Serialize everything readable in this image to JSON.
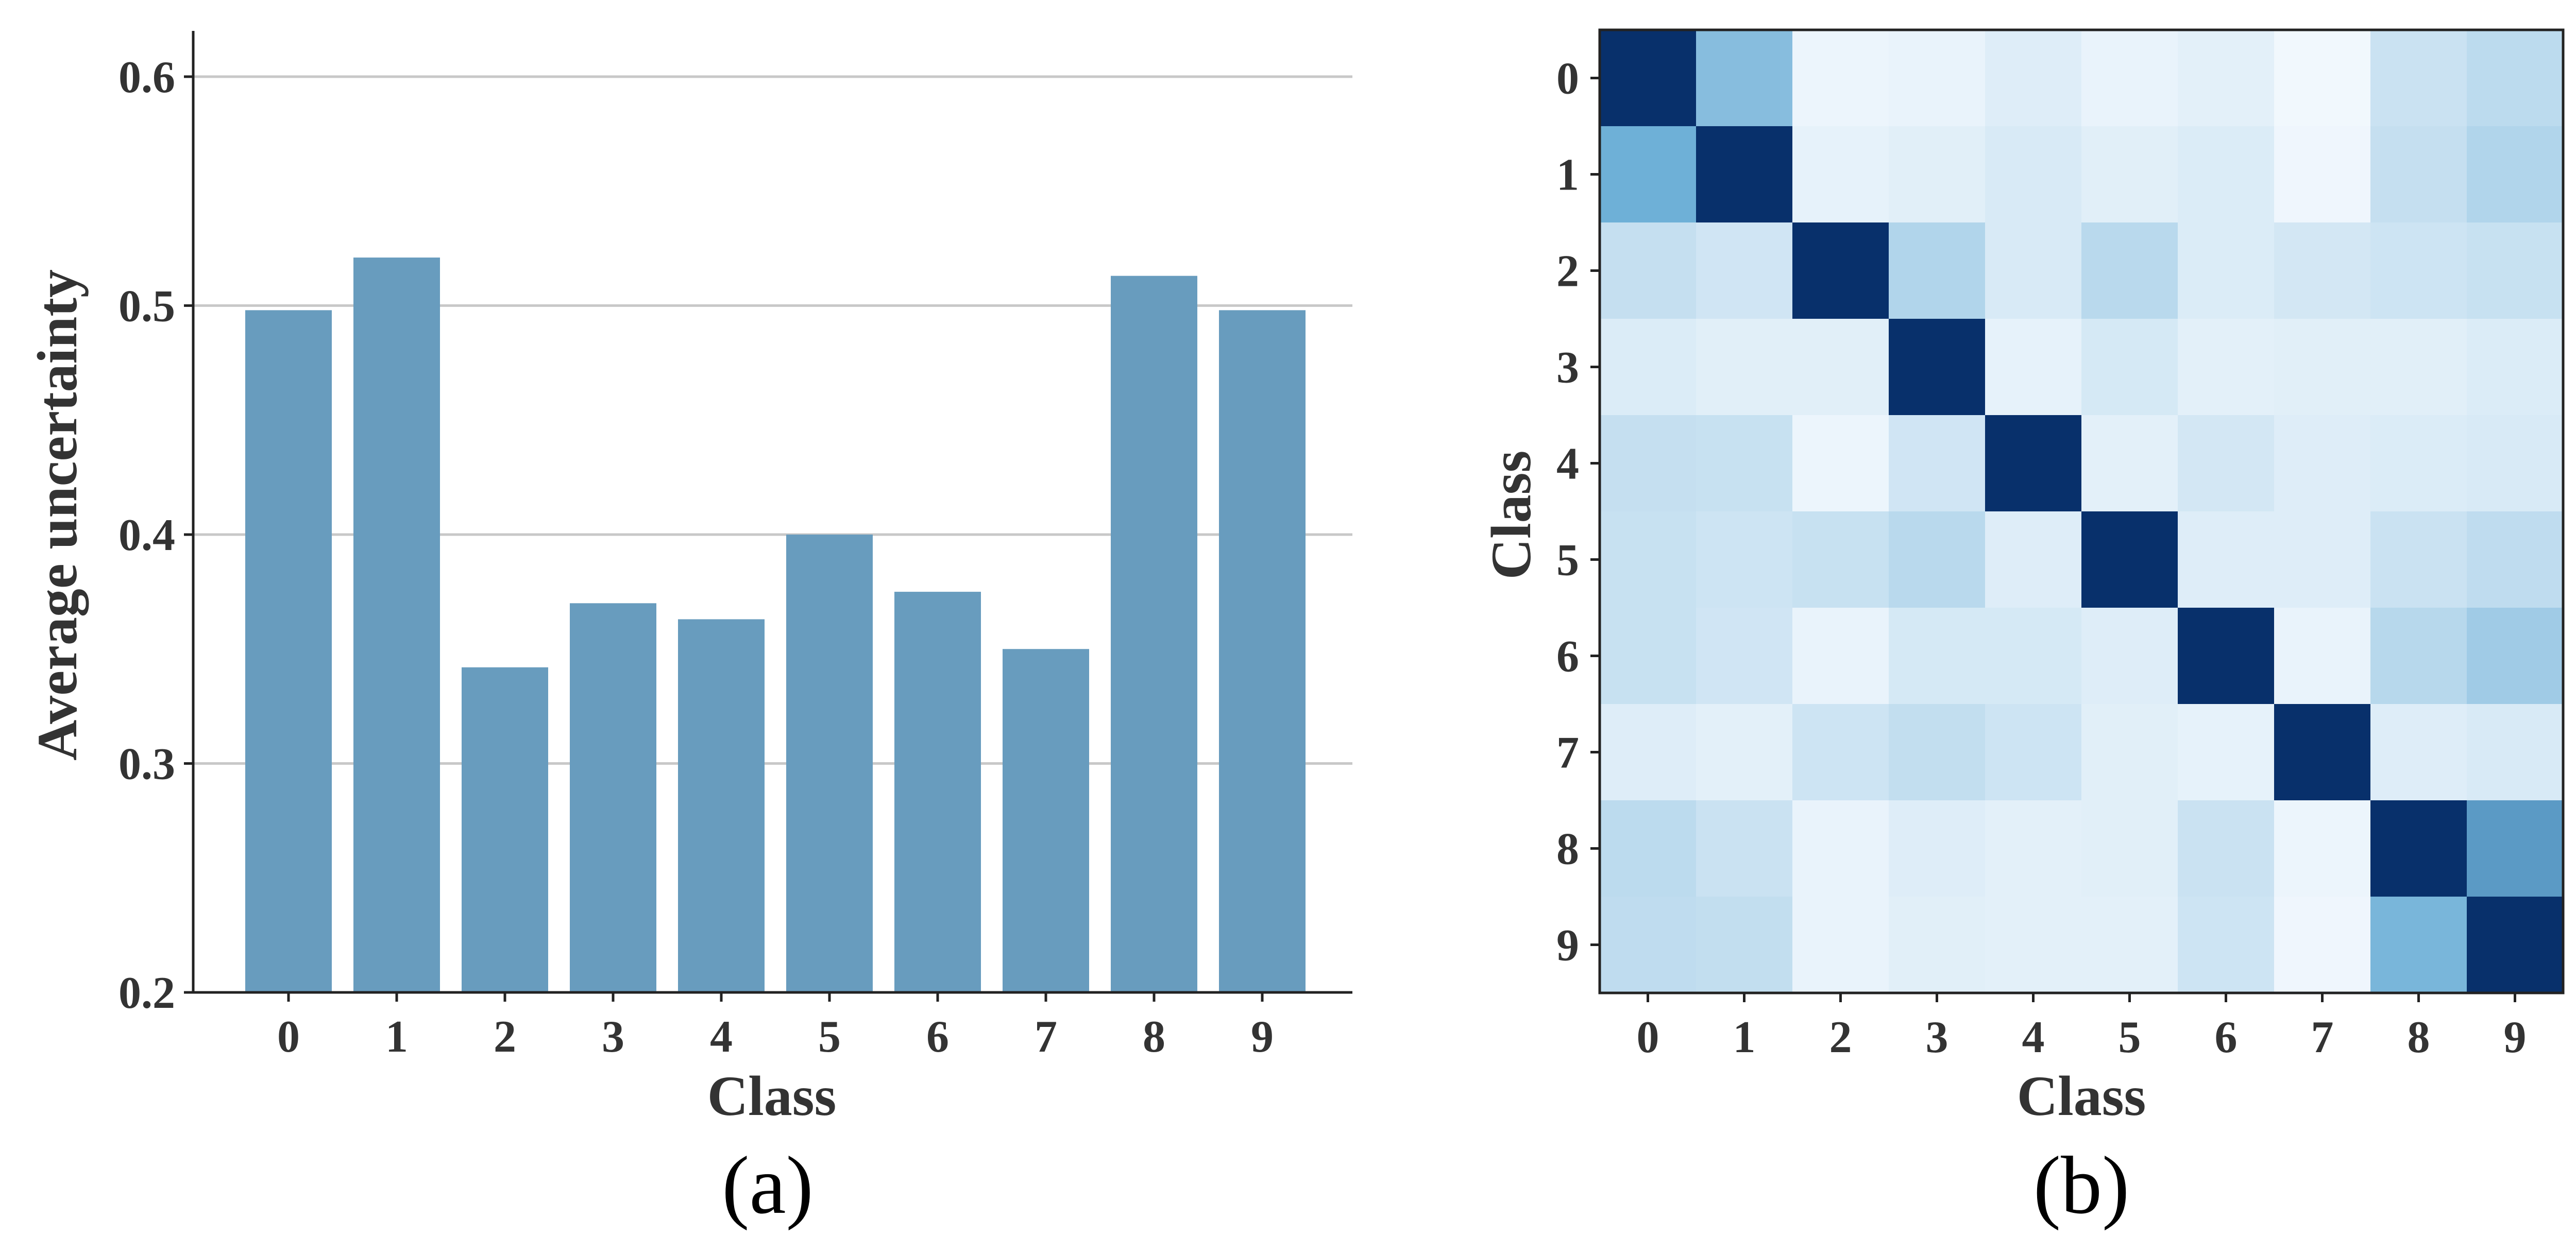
{
  "colors": {
    "bar": "#689cbe",
    "grid": "#c8c8c8",
    "axis": "#222222",
    "heat_low": "#f7fbff",
    "heat_high": "#08306b",
    "text": "#333333"
  },
  "chart_data": [
    {
      "type": "bar",
      "panel": "(a)",
      "categories": [
        "0",
        "1",
        "2",
        "3",
        "4",
        "5",
        "6",
        "7",
        "8",
        "9"
      ],
      "values": [
        0.498,
        0.521,
        0.342,
        0.37,
        0.363,
        0.4,
        0.375,
        0.35,
        0.513,
        0.498
      ],
      "xlabel": "Class",
      "ylabel": "Average uncertainty",
      "ylim": [
        0.2,
        0.62
      ],
      "yticks": [
        "0.2",
        "0.3",
        "0.4",
        "0.5",
        "0.6"
      ],
      "grid": true
    },
    {
      "type": "heatmap",
      "panel": "(b)",
      "x_categories": [
        "0",
        "1",
        "2",
        "3",
        "4",
        "5",
        "6",
        "7",
        "8",
        "9"
      ],
      "y_categories": [
        "0",
        "1",
        "2",
        "3",
        "4",
        "5",
        "6",
        "7",
        "8",
        "9"
      ],
      "xlabel": "Class",
      "ylabel": "Class",
      "matrix": [
        [
          1.0,
          0.4,
          0.04,
          0.05,
          0.09,
          0.05,
          0.07,
          0.02,
          0.16,
          0.21
        ],
        [
          0.49,
          1.0,
          0.06,
          0.08,
          0.11,
          0.08,
          0.1,
          0.03,
          0.18,
          0.25
        ],
        [
          0.18,
          0.14,
          1.0,
          0.25,
          0.11,
          0.22,
          0.1,
          0.13,
          0.15,
          0.17
        ],
        [
          0.1,
          0.08,
          0.08,
          1.0,
          0.06,
          0.12,
          0.07,
          0.08,
          0.08,
          0.1
        ],
        [
          0.18,
          0.17,
          0.04,
          0.14,
          1.0,
          0.07,
          0.13,
          0.09,
          0.1,
          0.11
        ],
        [
          0.17,
          0.15,
          0.17,
          0.22,
          0.09,
          1.0,
          0.09,
          0.09,
          0.16,
          0.2
        ],
        [
          0.17,
          0.14,
          0.05,
          0.12,
          0.12,
          0.09,
          1.0,
          0.05,
          0.23,
          0.31
        ],
        [
          0.09,
          0.07,
          0.15,
          0.19,
          0.15,
          0.08,
          0.06,
          1.0,
          0.09,
          0.11
        ],
        [
          0.21,
          0.16,
          0.05,
          0.09,
          0.07,
          0.08,
          0.16,
          0.04,
          1.0,
          0.58
        ],
        [
          0.2,
          0.19,
          0.05,
          0.08,
          0.07,
          0.07,
          0.15,
          0.03,
          0.45,
          1.0
        ]
      ]
    }
  ],
  "captions": {
    "a": "(a)",
    "b": "(b)"
  }
}
